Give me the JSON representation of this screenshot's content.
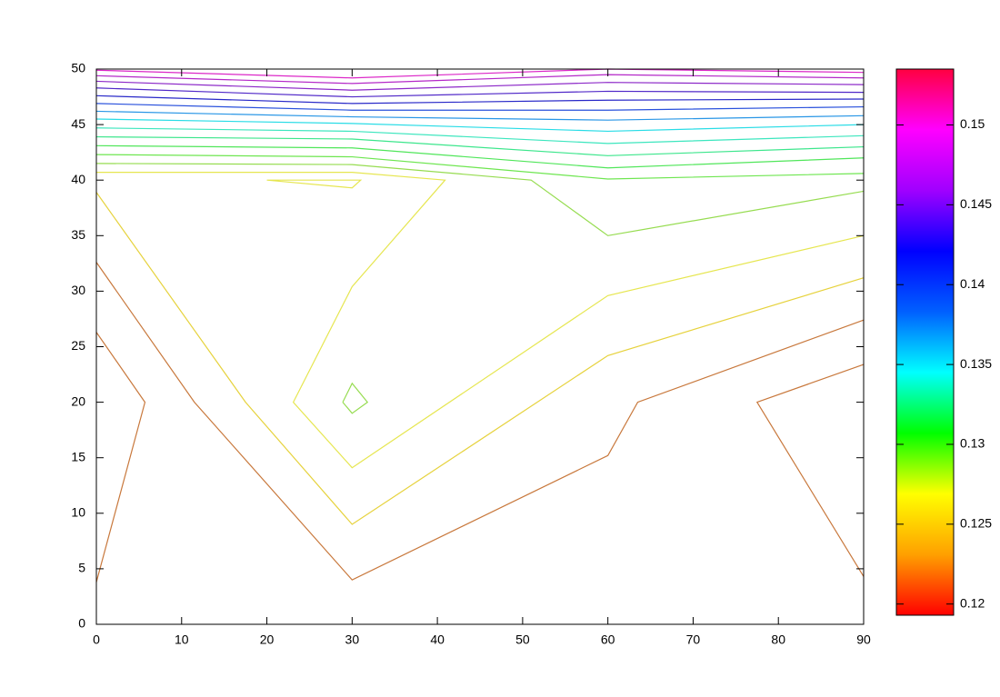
{
  "chart_data": {
    "type": "contour",
    "xlim": [
      0,
      90
    ],
    "xticks": [
      0,
      10,
      20,
      30,
      40,
      50,
      60,
      70,
      80,
      90
    ],
    "ylim": [
      0,
      50
    ],
    "yticks": [
      0,
      5,
      10,
      15,
      20,
      25,
      30,
      35,
      40,
      45,
      50
    ],
    "contours": [
      {
        "color": "#c8783c",
        "x": [
          0,
          5.7,
          0
        ],
        "y": [
          3.8,
          20,
          26.3
        ]
      },
      {
        "color": "#c8783c",
        "x": [
          0,
          11.5,
          30,
          60,
          63.5,
          90
        ],
        "y": [
          32.6,
          20,
          4,
          15.2,
          20,
          27.4
        ]
      },
      {
        "color": "#c8783c",
        "x": [
          90,
          77.5,
          90
        ],
        "y": [
          23.4,
          20,
          4.3
        ]
      },
      {
        "color": "#e6d23c",
        "x": [
          0,
          17.5,
          30,
          60,
          90
        ],
        "y": [
          38.9,
          20,
          9,
          24.2,
          31.2
        ]
      },
      {
        "color": "#e6e650",
        "x": [
          0,
          30,
          40.9,
          30,
          23.1,
          30,
          60,
          90
        ],
        "y": [
          40.7,
          40.7,
          40,
          30.4,
          20,
          14.1,
          29.6,
          35
        ]
      },
      {
        "color": "#e6e650",
        "x": [
          20,
          30,
          31,
          20
        ],
        "y": [
          40,
          39.3,
          40,
          40
        ]
      },
      {
        "color": "#96dc50",
        "x": [
          28.9,
          30,
          31.8,
          30,
          28.9
        ],
        "y": [
          20,
          21.7,
          20,
          19,
          20
        ]
      },
      {
        "color": "#96dc50",
        "x": [
          0,
          30,
          51,
          60,
          90
        ],
        "y": [
          41.5,
          41.4,
          40,
          35,
          39
        ]
      },
      {
        "color": "#6ee650",
        "x": [
          0,
          30,
          60,
          90
        ],
        "y": [
          42.3,
          42.1,
          40.1,
          40.6
        ]
      },
      {
        "color": "#50e65a",
        "x": [
          0,
          30,
          60,
          90
        ],
        "y": [
          43.1,
          42.9,
          41.1,
          42
        ]
      },
      {
        "color": "#3ce68c",
        "x": [
          0,
          30,
          60,
          90
        ],
        "y": [
          43.9,
          43.7,
          42.2,
          43
        ]
      },
      {
        "color": "#3ce6be",
        "x": [
          0,
          30,
          60,
          90
        ],
        "y": [
          44.7,
          44.4,
          43.3,
          44
        ]
      },
      {
        "color": "#28dce6",
        "x": [
          0,
          30,
          60,
          90
        ],
        "y": [
          45.5,
          45.1,
          44.4,
          45
        ]
      },
      {
        "color": "#2896e6",
        "x": [
          0,
          30,
          60,
          90
        ],
        "y": [
          46.2,
          45.7,
          45.4,
          45.8
        ]
      },
      {
        "color": "#2850dc",
        "x": [
          0,
          30,
          60,
          90
        ],
        "y": [
          46.9,
          46.3,
          46.3,
          46.6
        ]
      },
      {
        "color": "#2828c8",
        "x": [
          0,
          30,
          60,
          90
        ],
        "y": [
          47.6,
          46.9,
          47.2,
          47.3
        ]
      },
      {
        "color": "#5028c8",
        "x": [
          0,
          30,
          60,
          90
        ],
        "y": [
          48.3,
          47.5,
          48,
          47.9
        ]
      },
      {
        "color": "#8c28c8",
        "x": [
          0,
          30,
          60,
          90
        ],
        "y": [
          48.9,
          48.1,
          48.8,
          48.6
        ]
      },
      {
        "color": "#b428c8",
        "x": [
          0,
          30,
          60,
          90
        ],
        "y": [
          49.4,
          48.7,
          49.5,
          49.2
        ]
      },
      {
        "color": "#dc28c8",
        "x": [
          0,
          30,
          60,
          90
        ],
        "y": [
          49.9,
          49.2,
          50,
          49.7
        ]
      }
    ],
    "colorbar": {
      "lim": [
        0.1193,
        0.1535
      ],
      "ticks": [
        0.12,
        0.125,
        0.13,
        0.135,
        0.14,
        0.145,
        0.15
      ],
      "palette": [
        "#ff0000",
        "#ffa000",
        "#ffff00",
        "#00ff00",
        "#00ffff",
        "#0060ff",
        "#0000ff",
        "#a000ff",
        "#ff00ff",
        "#ff0040"
      ]
    }
  }
}
